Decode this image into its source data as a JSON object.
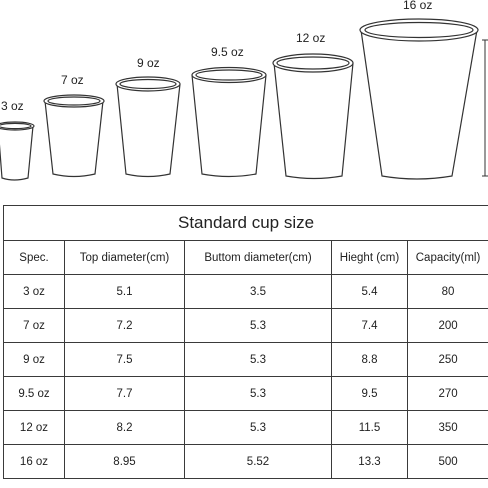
{
  "cups": [
    {
      "label": "3 oz"
    },
    {
      "label": "7 oz"
    },
    {
      "label": "9 oz"
    },
    {
      "label": "9.5 oz"
    },
    {
      "label": "12 oz"
    },
    {
      "label": "16 oz"
    }
  ],
  "table": {
    "title": "Standard cup size",
    "headers": [
      "Spec.",
      "Top diameter(cm)",
      "Buttom diameter(cm)",
      "Hieght (cm)",
      "Capacity(ml)"
    ],
    "rows": [
      [
        "3 oz",
        "5.1",
        "3.5",
        "5.4",
        "80"
      ],
      [
        "7 oz",
        "7.2",
        "5.3",
        "7.4",
        "200"
      ],
      [
        "9 oz",
        "7.5",
        "5.3",
        "8.8",
        "250"
      ],
      [
        "9.5 oz",
        "7.7",
        "5.3",
        "9.5",
        "270"
      ],
      [
        "12 oz",
        "8.2",
        "5.3",
        "11.5",
        "350"
      ],
      [
        "16 oz",
        "8.95",
        "5.52",
        "13.3",
        "500"
      ]
    ]
  }
}
